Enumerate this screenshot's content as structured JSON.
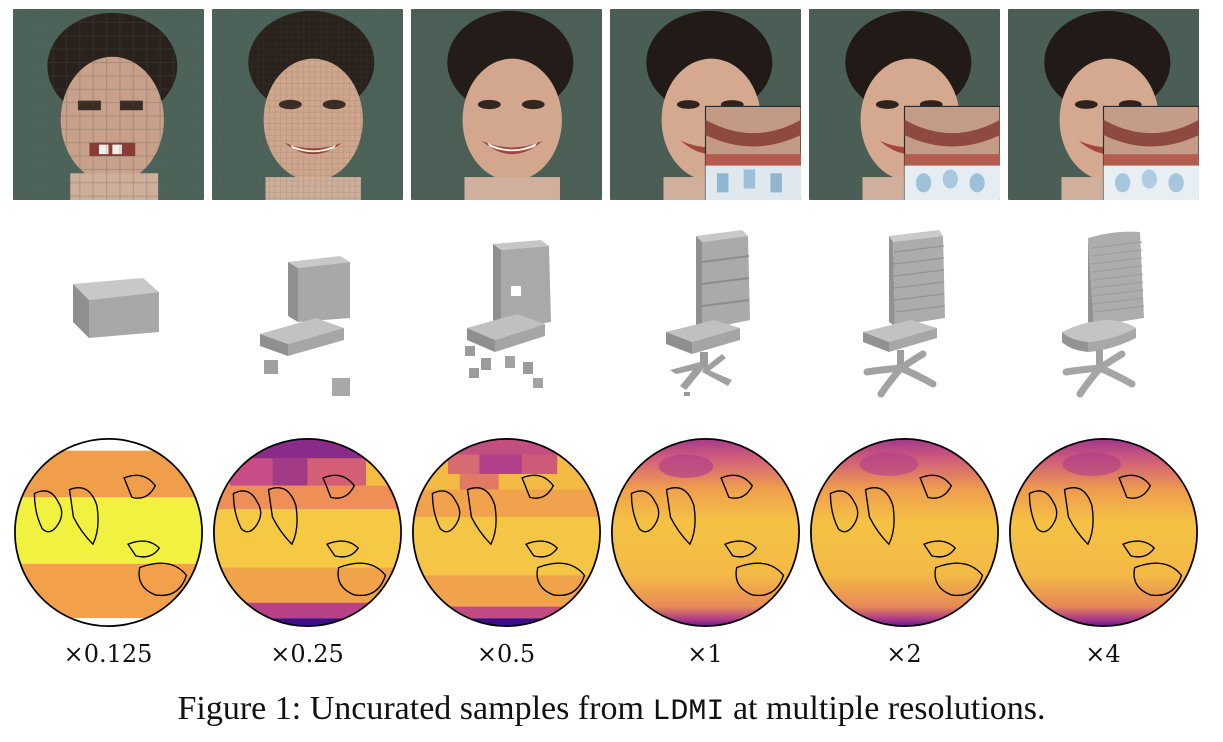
{
  "figure": {
    "scale_labels": [
      "×0.125",
      "×0.25",
      "×0.5",
      "×1",
      "×2",
      "×4"
    ],
    "caption": {
      "prefix": "Figure 1: Uncurated samples from ",
      "model": "LDMI",
      "suffix": " at multiple resolutions."
    }
  },
  "rows": [
    "portrait photographs",
    "3D chair voxel samples",
    "globe temperature maps"
  ],
  "colors": {
    "background": "#ffffff",
    "voxel_grey": "#a6a6a6",
    "map_low": "#2a0c70",
    "map_mid": "#c53a7a",
    "map_high": "#f2ea3a",
    "coastline": "#000000"
  }
}
